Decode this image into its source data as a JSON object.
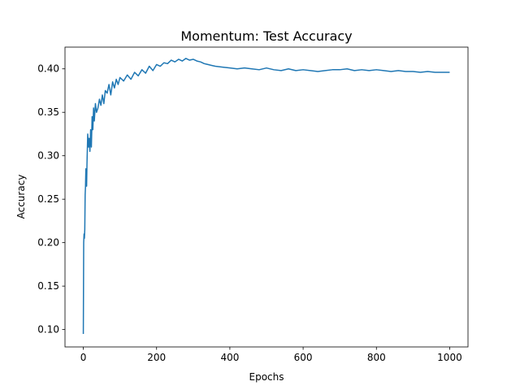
{
  "chart_data": {
    "type": "line",
    "title": "Momentum: Test Accuracy",
    "xlabel": "Epochs",
    "ylabel": "Accuracy",
    "xlim": [
      -50,
      1050
    ],
    "ylim": [
      0.08,
      0.425
    ],
    "xticks": [
      0,
      200,
      400,
      600,
      800,
      1000
    ],
    "xtick_labels": [
      "0",
      "200",
      "400",
      "600",
      "800",
      "1000"
    ],
    "yticks": [
      0.1,
      0.15,
      0.2,
      0.25,
      0.3,
      0.35,
      0.4
    ],
    "ytick_labels": [
      "0.10",
      "0.15",
      "0.20",
      "0.25",
      "0.30",
      "0.35",
      "0.40"
    ],
    "grid": false,
    "legend": "none",
    "line_color": "#1f77b4",
    "series": [
      {
        "x": [
          0,
          1,
          2,
          3,
          4,
          5,
          6,
          7,
          8,
          9,
          10,
          12,
          14,
          16,
          18,
          20,
          22,
          24,
          26,
          28,
          30,
          33,
          36,
          40,
          44,
          48,
          52,
          56,
          60,
          65,
          70,
          75,
          80,
          85,
          90,
          95,
          100,
          110,
          120,
          130,
          140,
          150,
          160,
          170,
          180,
          190,
          200,
          210,
          220,
          230,
          240,
          250,
          260,
          270,
          280,
          290,
          300,
          310,
          320,
          330,
          340,
          350,
          360,
          380,
          400,
          420,
          440,
          460,
          480,
          500,
          520,
          540,
          560,
          580,
          600,
          620,
          640,
          660,
          680,
          700,
          720,
          740,
          760,
          780,
          800,
          820,
          840,
          860,
          880,
          900,
          920,
          940,
          960,
          980,
          1000
        ],
        "y": [
          0.095,
          0.2,
          0.21,
          0.205,
          0.215,
          0.255,
          0.265,
          0.285,
          0.27,
          0.265,
          0.29,
          0.325,
          0.31,
          0.32,
          0.305,
          0.33,
          0.31,
          0.345,
          0.33,
          0.355,
          0.34,
          0.36,
          0.35,
          0.355,
          0.365,
          0.358,
          0.37,
          0.36,
          0.375,
          0.372,
          0.382,
          0.37,
          0.385,
          0.378,
          0.388,
          0.382,
          0.39,
          0.386,
          0.393,
          0.388,
          0.396,
          0.392,
          0.399,
          0.395,
          0.403,
          0.398,
          0.405,
          0.403,
          0.407,
          0.406,
          0.41,
          0.408,
          0.411,
          0.409,
          0.412,
          0.41,
          0.411,
          0.409,
          0.408,
          0.406,
          0.405,
          0.404,
          0.403,
          0.402,
          0.401,
          0.4,
          0.401,
          0.4,
          0.399,
          0.401,
          0.399,
          0.398,
          0.4,
          0.398,
          0.399,
          0.398,
          0.397,
          0.398,
          0.399,
          0.399,
          0.4,
          0.398,
          0.399,
          0.398,
          0.399,
          0.398,
          0.397,
          0.398,
          0.397,
          0.397,
          0.396,
          0.397,
          0.396,
          0.396,
          0.396
        ]
      }
    ]
  }
}
